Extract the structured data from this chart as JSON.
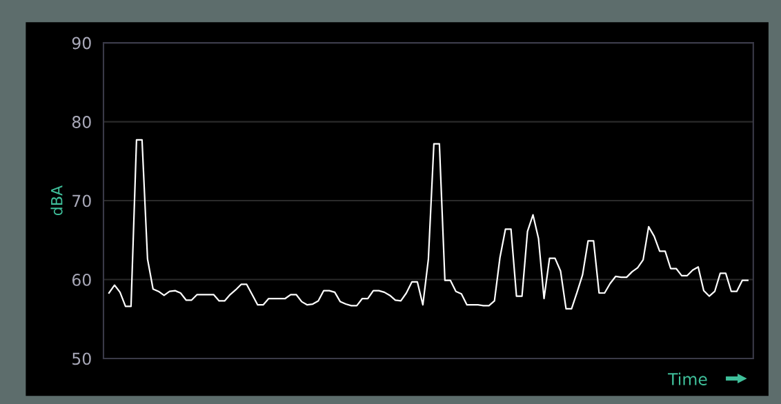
{
  "chart_data": {
    "type": "line",
    "ylabel": "dBA",
    "xlabel": "Time",
    "categories": [
      null,
      null,
      null,
      null,
      null,
      null,
      null,
      null,
      null,
      null,
      null,
      null,
      null,
      null,
      null,
      null,
      null,
      null,
      null,
      null,
      null,
      null,
      null,
      null,
      null,
      null,
      null,
      null,
      null,
      null,
      null,
      null,
      null,
      null,
      null,
      null,
      null,
      null,
      null,
      null,
      null,
      null,
      null,
      null,
      null,
      null,
      null,
      null,
      null,
      null,
      null,
      null,
      null,
      null,
      null,
      null,
      null,
      null,
      null,
      null,
      null,
      null,
      null,
      null,
      null,
      null,
      null,
      null,
      null,
      null,
      null,
      null,
      null,
      null,
      null,
      null,
      null,
      null,
      null,
      null,
      null,
      null,
      null,
      null,
      null,
      null,
      null,
      null,
      null,
      null,
      null,
      null,
      null,
      null,
      null,
      null,
      null,
      null,
      null,
      null,
      null,
      null,
      null,
      null,
      null,
      null,
      null,
      null,
      null,
      null,
      null,
      null,
      null,
      null,
      null,
      null,
      null
    ],
    "series": [
      {
        "color": "#ffffff",
        "values": [
          58.3,
          59.3,
          58.4,
          56.6,
          56.6,
          77.7,
          77.7,
          62.6,
          58.8,
          58.5,
          58.0,
          58.5,
          58.6,
          58.3,
          57.4,
          57.4,
          58.1,
          58.1,
          58.1,
          58.1,
          57.3,
          57.3,
          58.1,
          58.7,
          59.4,
          59.4,
          58.1,
          56.8,
          56.8,
          57.6,
          57.6,
          57.6,
          57.6,
          58.1,
          58.1,
          57.2,
          56.8,
          56.9,
          57.3,
          58.6,
          58.6,
          58.4,
          57.2,
          56.9,
          56.7,
          56.7,
          57.6,
          57.6,
          58.6,
          58.6,
          58.4,
          58.0,
          57.4,
          57.3,
          58.3,
          59.7,
          59.7,
          56.8,
          62.6,
          77.2,
          77.2,
          59.9,
          59.9,
          58.5,
          58.2,
          56.8,
          56.8,
          56.8,
          56.7,
          56.7,
          57.3,
          62.8,
          66.4,
          66.4,
          57.9,
          57.9,
          66.1,
          68.2,
          65.2,
          57.6,
          62.7,
          62.7,
          61.1,
          56.3,
          56.3,
          58.4,
          60.6,
          64.9,
          64.9,
          58.3,
          58.3,
          59.5,
          60.4,
          60.3,
          60.3,
          61.0,
          61.5,
          62.5,
          66.7,
          65.5,
          63.6,
          63.6,
          61.4,
          61.4,
          60.5,
          60.5,
          61.2,
          61.6,
          58.6,
          57.9,
          58.5,
          60.8,
          60.8,
          58.5,
          58.5,
          59.9,
          59.9
        ]
      }
    ],
    "ylim": [
      50,
      90
    ],
    "yticks": [
      50,
      60,
      70,
      80,
      90
    ],
    "grid": "y",
    "tick_labels": "y",
    "legend": false,
    "marker": "none",
    "line_style": "solid"
  }
}
